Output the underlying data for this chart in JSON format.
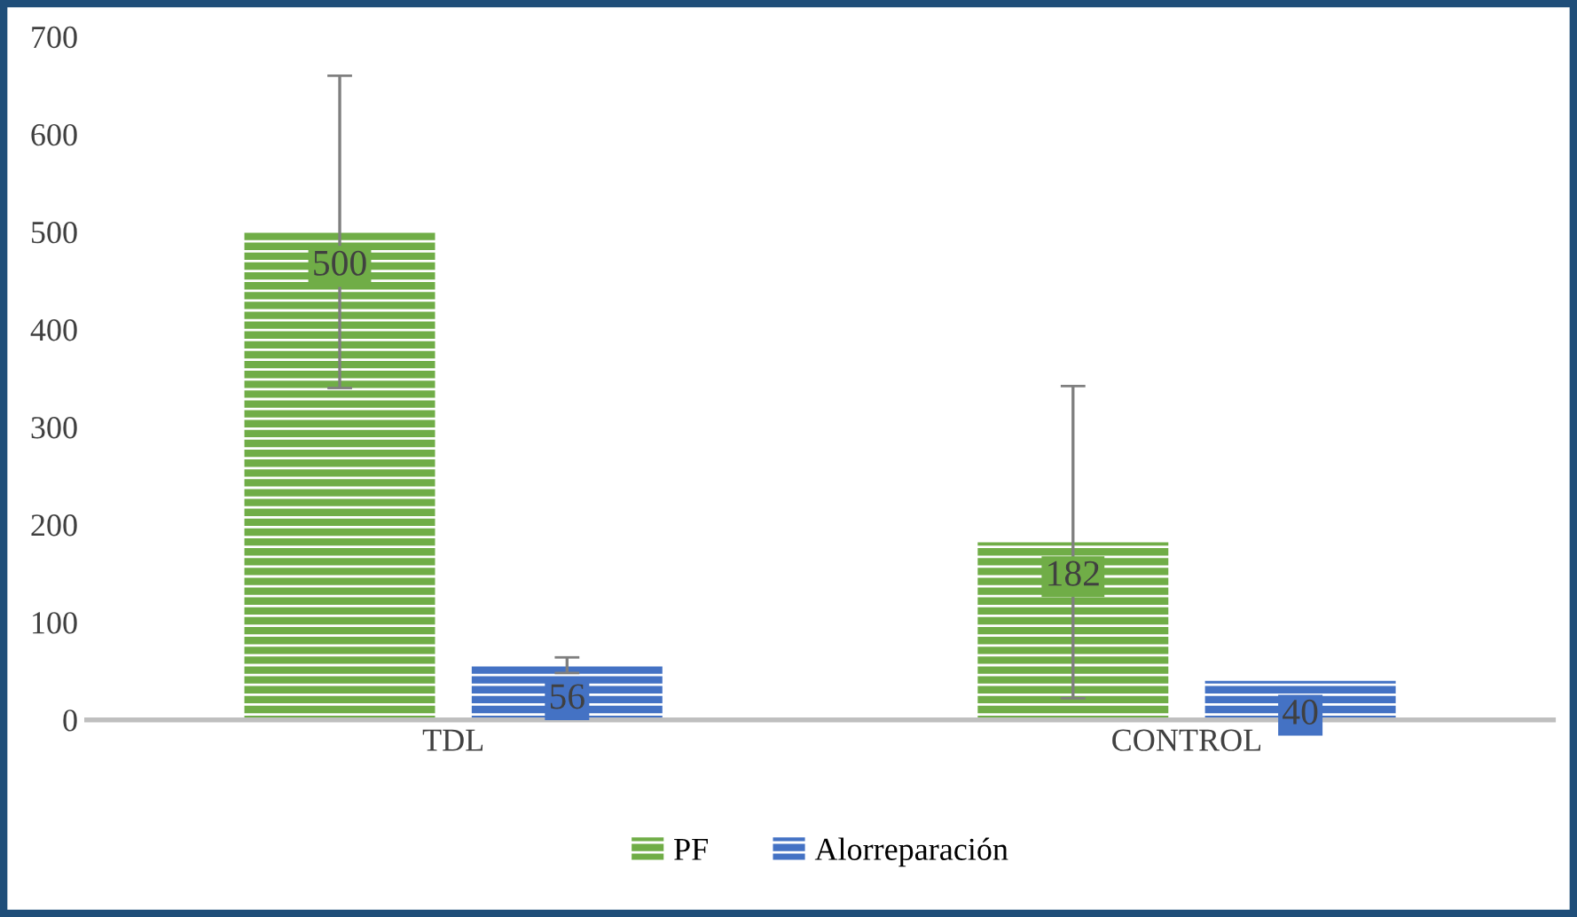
{
  "chart_data": {
    "type": "bar",
    "categories": [
      "TDL",
      "CONTROL"
    ],
    "series": [
      {
        "name": "PF",
        "color": "#70ad47",
        "values": [
          500,
          182
        ],
        "errors": [
          160,
          160
        ]
      },
      {
        "name": "Alorreparación",
        "color": "#4472c4",
        "values": [
          56,
          40
        ],
        "errors": [
          8,
          null
        ]
      }
    ],
    "ylim": [
      0,
      700
    ],
    "yticks": [
      0,
      100,
      200,
      300,
      400,
      500,
      600,
      700
    ],
    "grid": false,
    "legend": "bottom",
    "data_labels": true
  }
}
